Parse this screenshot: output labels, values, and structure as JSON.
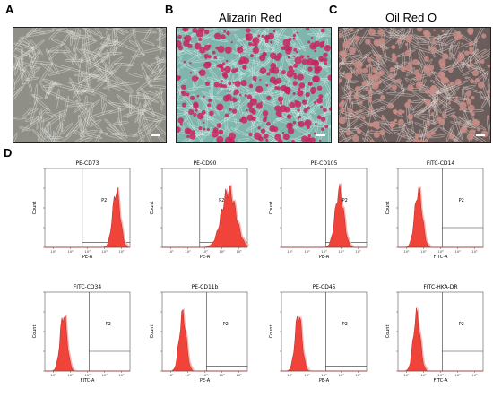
{
  "labels": {
    "a": "A",
    "b": "B",
    "c": "C",
    "d": "D"
  },
  "panel_titles": {
    "b": "Alizarin Red",
    "c": "Oil Red O"
  },
  "colors": {
    "micro_a_bg": "#8f8f88",
    "micro_b_bg": "#7fb5ad",
    "micro_b_stain": "#c8245e",
    "micro_c_bg": "#6b5d5b",
    "micro_c_stain": "#c98d86",
    "hist_fill": "#f0433a",
    "hist_halo": "#f7b3b0"
  },
  "histograms": [
    {
      "title": "PE-CD73",
      "xlabel": "PE-A",
      "ylabel": "Count",
      "gate": "P2",
      "peak_log": 4.2,
      "width": 0.22,
      "gate_from": 2.2,
      "gate_y": 0.06
    },
    {
      "title": "PE-CD90",
      "xlabel": "PE-A",
      "ylabel": "Count",
      "gate": "P2",
      "peak_log": 3.9,
      "width": 0.42,
      "gate_from": 2.2,
      "gate_y": 0.06
    },
    {
      "title": "PE-CD105",
      "xlabel": "PE-A",
      "ylabel": "Count",
      "gate": "P2",
      "peak_log": 3.4,
      "width": 0.25,
      "gate_from": 2.6,
      "gate_y": 0.06
    },
    {
      "title": "FITC-CD14",
      "xlabel": "FITC-A",
      "ylabel": "Count",
      "gate": "P2",
      "peak_log": 1.2,
      "width": 0.22,
      "gate_from": 2.6,
      "gate_y": 0.25
    },
    {
      "title": "FITC-CD34",
      "xlabel": "FITC-A",
      "ylabel": "Count",
      "gate": "P2",
      "peak_log": 1.1,
      "width": 0.2,
      "gate_from": 2.6,
      "gate_y": 0.25
    },
    {
      "title": "PE-CD11b",
      "xlabel": "PE-A",
      "ylabel": "Count",
      "gate": "P2",
      "peak_log": 1.2,
      "width": 0.2,
      "gate_from": 2.6,
      "gate_y": 0.06
    },
    {
      "title": "PE-CD45",
      "xlabel": "PE-A",
      "ylabel": "Count",
      "gate": "P2",
      "peak_log": 1.0,
      "width": 0.2,
      "gate_from": 2.6,
      "gate_y": 0.06
    },
    {
      "title": "FITC-HKA-DR",
      "xlabel": "FITC-A",
      "ylabel": "Count",
      "gate": "P2",
      "peak_log": 1.1,
      "width": 0.2,
      "gate_from": 2.6,
      "gate_y": 0.25
    }
  ]
}
